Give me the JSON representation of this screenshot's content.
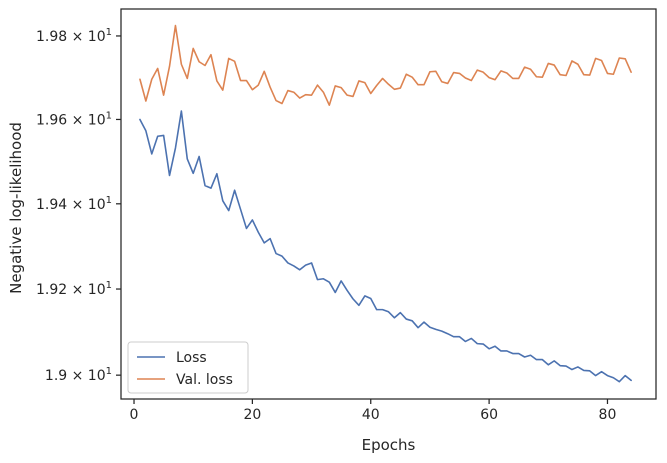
{
  "chart_data": {
    "type": "line",
    "xlabel": "Epochs",
    "ylabel": "Negative log-likelihood",
    "xlim": [
      -2.2,
      88.2
    ],
    "ylim": [
      18.945,
      19.865
    ],
    "yscale": "log",
    "grid": false,
    "legend_position": "lower-left",
    "xticks": [
      0,
      20,
      40,
      60,
      80
    ],
    "yticks": [
      {
        "value": 19.0,
        "mantissa": "1.9",
        "exponent": "1"
      },
      {
        "value": 19.2,
        "mantissa": "1.92",
        "exponent": "1"
      },
      {
        "value": 19.4,
        "mantissa": "1.94",
        "exponent": "1"
      },
      {
        "value": 19.6,
        "mantissa": "1.96",
        "exponent": "1"
      },
      {
        "value": 19.8,
        "mantissa": "1.98",
        "exponent": "1"
      }
    ],
    "x": [
      1,
      2,
      3,
      4,
      5,
      6,
      7,
      8,
      9,
      10,
      11,
      12,
      13,
      14,
      15,
      16,
      17,
      18,
      19,
      20,
      21,
      22,
      23,
      24,
      25,
      26,
      27,
      28,
      29,
      30,
      31,
      32,
      33,
      34,
      35,
      36,
      37,
      38,
      39,
      40,
      41,
      42,
      43,
      44,
      45,
      46,
      47,
      48,
      49,
      50,
      51,
      52,
      53,
      54,
      55,
      56,
      57,
      58,
      59,
      60,
      61,
      62,
      63,
      64,
      65,
      66,
      67,
      68,
      69,
      70,
      71,
      72,
      73,
      74,
      75,
      76,
      77,
      78,
      79,
      80,
      81,
      82,
      83,
      84
    ],
    "series": [
      {
        "name": "Loss",
        "color": "#4c72b0",
        "values": [
          19.6,
          19.573,
          19.518,
          19.56,
          19.562,
          19.467,
          19.532,
          19.62,
          19.506,
          19.472,
          19.512,
          19.443,
          19.437,
          19.471,
          19.407,
          19.384,
          19.432,
          19.387,
          19.342,
          19.362,
          19.333,
          19.308,
          19.318,
          19.283,
          19.277,
          19.261,
          19.254,
          19.245,
          19.256,
          19.261,
          19.222,
          19.224,
          19.216,
          19.192,
          19.219,
          19.197,
          19.177,
          19.162,
          19.184,
          19.178,
          19.152,
          19.152,
          19.147,
          19.133,
          19.145,
          19.13,
          19.126,
          19.11,
          19.123,
          19.111,
          19.106,
          19.102,
          19.096,
          19.089,
          19.089,
          19.078,
          19.085,
          19.073,
          19.072,
          19.061,
          19.067,
          19.056,
          19.056,
          19.05,
          19.05,
          19.042,
          19.046,
          19.036,
          19.036,
          19.024,
          19.033,
          19.022,
          19.021,
          19.013,
          19.019,
          19.011,
          19.01,
          18.999,
          19.008,
          18.999,
          18.994,
          18.985,
          18.999,
          18.988
        ]
      },
      {
        "name": "Val. loss",
        "color": "#dd8452",
        "values": [
          19.696,
          19.644,
          19.696,
          19.722,
          19.658,
          19.727,
          19.825,
          19.732,
          19.698,
          19.77,
          19.738,
          19.729,
          19.755,
          19.692,
          19.67,
          19.746,
          19.739,
          19.693,
          19.693,
          19.671,
          19.682,
          19.715,
          19.677,
          19.645,
          19.638,
          19.669,
          19.665,
          19.651,
          19.659,
          19.658,
          19.682,
          19.665,
          19.634,
          19.68,
          19.676,
          19.658,
          19.655,
          19.692,
          19.688,
          19.662,
          19.681,
          19.698,
          19.684,
          19.672,
          19.675,
          19.708,
          19.701,
          19.683,
          19.683,
          19.714,
          19.715,
          19.69,
          19.686,
          19.712,
          19.71,
          19.699,
          19.693,
          19.718,
          19.713,
          19.7,
          19.695,
          19.716,
          19.711,
          19.698,
          19.698,
          19.725,
          19.72,
          19.702,
          19.701,
          19.734,
          19.73,
          19.707,
          19.705,
          19.74,
          19.732,
          19.707,
          19.706,
          19.746,
          19.741,
          19.71,
          19.708,
          19.747,
          19.745,
          19.713
        ]
      }
    ]
  }
}
